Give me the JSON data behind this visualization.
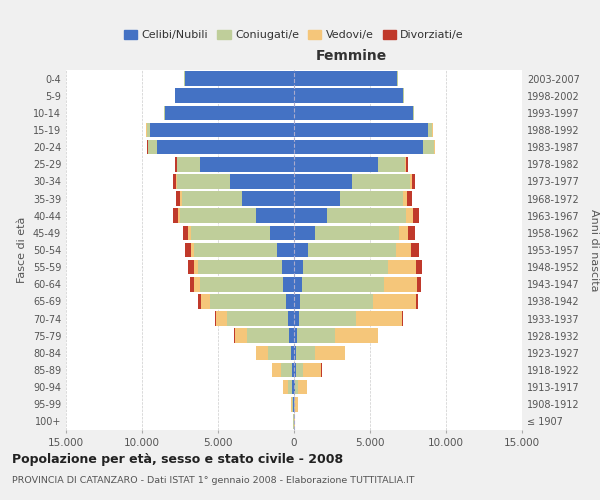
{
  "age_groups": [
    "100+",
    "95-99",
    "90-94",
    "85-89",
    "80-84",
    "75-79",
    "70-74",
    "65-69",
    "60-64",
    "55-59",
    "50-54",
    "45-49",
    "40-44",
    "35-39",
    "30-34",
    "25-29",
    "20-24",
    "15-19",
    "10-14",
    "5-9",
    "0-4"
  ],
  "birth_years": [
    "≤ 1907",
    "1908-1912",
    "1913-1917",
    "1918-1922",
    "1923-1927",
    "1928-1932",
    "1933-1937",
    "1938-1942",
    "1943-1947",
    "1948-1952",
    "1953-1957",
    "1958-1962",
    "1963-1967",
    "1968-1972",
    "1973-1977",
    "1978-1982",
    "1983-1987",
    "1988-1992",
    "1993-1997",
    "1998-2002",
    "2003-2007"
  ],
  "male_celibe": [
    30,
    50,
    100,
    150,
    200,
    300,
    400,
    550,
    700,
    800,
    1100,
    1600,
    2500,
    3400,
    4200,
    6200,
    9000,
    9500,
    8500,
    7800,
    7200
  ],
  "male_coniugato": [
    20,
    80,
    300,
    700,
    1500,
    2800,
    4000,
    5000,
    5500,
    5500,
    5500,
    5200,
    5000,
    4000,
    3500,
    1500,
    600,
    200,
    50,
    30,
    20
  ],
  "male_vedovo": [
    10,
    80,
    300,
    600,
    800,
    800,
    700,
    600,
    400,
    300,
    200,
    150,
    100,
    80,
    50,
    30,
    20,
    10,
    5,
    5,
    5
  ],
  "male_divorziato": [
    2,
    5,
    10,
    20,
    30,
    50,
    80,
    150,
    250,
    350,
    400,
    380,
    350,
    280,
    200,
    100,
    50,
    20,
    10,
    5,
    5
  ],
  "female_celibe": [
    20,
    30,
    60,
    100,
    150,
    200,
    300,
    400,
    500,
    600,
    900,
    1400,
    2200,
    3000,
    3800,
    5500,
    8500,
    8800,
    7800,
    7200,
    6800
  ],
  "female_coniugata": [
    10,
    50,
    200,
    500,
    1200,
    2500,
    3800,
    4800,
    5400,
    5600,
    5800,
    5500,
    5200,
    4200,
    3800,
    1800,
    700,
    300,
    80,
    40,
    30
  ],
  "female_vedova": [
    15,
    200,
    600,
    1200,
    2000,
    2800,
    3000,
    2800,
    2200,
    1800,
    1000,
    600,
    400,
    250,
    150,
    100,
    50,
    20,
    10,
    5,
    5
  ],
  "female_divorziata": [
    2,
    5,
    10,
    20,
    30,
    50,
    100,
    180,
    280,
    400,
    500,
    450,
    420,
    320,
    200,
    100,
    50,
    20,
    10,
    5,
    5
  ],
  "colors": {
    "celibe": "#4472C4",
    "coniugato": "#BFCE9A",
    "vedovo": "#F5C67A",
    "divorziato": "#C0392B"
  },
  "xlim": 15000,
  "title": "Popolazione per età, sesso e stato civile - 2008",
  "subtitle": "PROVINCIA DI CATANZARO - Dati ISTAT 1° gennaio 2008 - Elaborazione TUTTITALIA.IT",
  "xlabel_femmine": "Femmine",
  "ylabel": "Fasce di età",
  "ylabel_right": "Anni di nascita",
  "legend_labels": [
    "Celibi/Nubili",
    "Coniugati/e",
    "Vedovi/e",
    "Divorziati/e"
  ],
  "bg_color": "#f0f0f0",
  "plot_bg_color": "#ffffff"
}
